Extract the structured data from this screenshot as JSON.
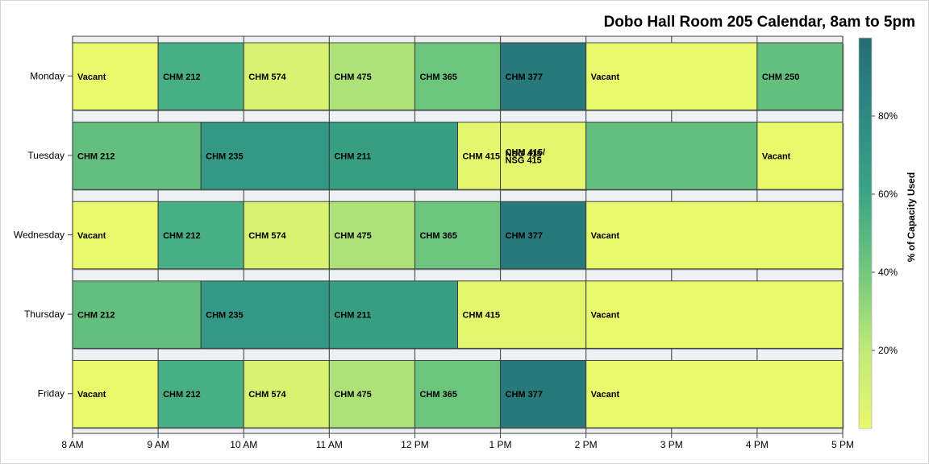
{
  "chart_data": {
    "type": "heatmap",
    "title": "Dobo Hall Room 205 Calendar, 8am to 5pm",
    "xlabel": "",
    "ylabel": "",
    "x_ticks": [
      "8 AM",
      "9 AM",
      "10 AM",
      "11 AM",
      "12 PM",
      "1 PM",
      "2 PM",
      "3 PM",
      "4 PM",
      "5 PM"
    ],
    "x_range": [
      8,
      17
    ],
    "days": [
      "Monday",
      "Tuesday",
      "Wednesday",
      "Thursday",
      "Friday"
    ],
    "colorbar": {
      "title": "% of Capacity Used",
      "ticks": [
        "20%",
        "40%",
        "60%",
        "80%"
      ],
      "tick_values": [
        20,
        40,
        60,
        80
      ],
      "range": [
        0,
        100
      ],
      "colors": [
        "#eaf86c",
        "#c0ea78",
        "#72c87c",
        "#3aa585",
        "#2d8a82",
        "#246d73"
      ]
    },
    "series": [
      {
        "day": "Monday",
        "blocks": [
          {
            "label": "Vacant",
            "start": 8,
            "end": 9,
            "pct": 0
          },
          {
            "label": "CHM 212",
            "start": 9,
            "end": 10,
            "pct": 55
          },
          {
            "label": "CHM 574",
            "start": 10,
            "end": 11,
            "pct": 8
          },
          {
            "label": "CHM 475",
            "start": 11,
            "end": 12,
            "pct": 25
          },
          {
            "label": "CHM 365",
            "start": 12,
            "end": 13,
            "pct": 42
          },
          {
            "label": "CHM 377",
            "start": 13,
            "end": 14,
            "pct": 92
          },
          {
            "label": "Vacant",
            "start": 14,
            "end": 16,
            "pct": 0
          },
          {
            "label": "CHM 250",
            "start": 16,
            "end": 17,
            "pct": 45
          }
        ]
      },
      {
        "day": "Tuesday",
        "blocks": [
          {
            "label": "CHM 212",
            "start": 8,
            "end": 9.5,
            "pct": 45
          },
          {
            "label": "CHM 235",
            "start": 9.5,
            "end": 11,
            "pct": 70
          },
          {
            "label": "CHM 211",
            "start": 11,
            "end": 12.5,
            "pct": 65
          },
          {
            "label": "CHM 415",
            "start": 12.5,
            "end": 14,
            "pct": 3
          },
          {
            "label": "CHM 415/\nNSG 415",
            "start": 13,
            "end": 14,
            "pct": 3
          },
          {
            "label": "",
            "start": 14,
            "end": 16,
            "pct": 45
          },
          {
            "label": "Vacant",
            "start": 16,
            "end": 17,
            "pct": 0
          }
        ],
        "overlay_labels": [
          "NSG 415"
        ]
      },
      {
        "day": "Wednesday",
        "blocks": [
          {
            "label": "Vacant",
            "start": 8,
            "end": 9,
            "pct": 0
          },
          {
            "label": "CHM 212",
            "start": 9,
            "end": 10,
            "pct": 55
          },
          {
            "label": "CHM 574",
            "start": 10,
            "end": 11,
            "pct": 8
          },
          {
            "label": "CHM 475",
            "start": 11,
            "end": 12,
            "pct": 25
          },
          {
            "label": "CHM 365",
            "start": 12,
            "end": 13,
            "pct": 42
          },
          {
            "label": "CHM 377",
            "start": 13,
            "end": 14,
            "pct": 92
          },
          {
            "label": "Vacant",
            "start": 14,
            "end": 17,
            "pct": 0
          }
        ]
      },
      {
        "day": "Thursday",
        "blocks": [
          {
            "label": "CHM 212",
            "start": 8,
            "end": 9.5,
            "pct": 45
          },
          {
            "label": "CHM 235",
            "start": 9.5,
            "end": 11,
            "pct": 70
          },
          {
            "label": "CHM 211",
            "start": 11,
            "end": 12.5,
            "pct": 65
          },
          {
            "label": "CHM 415",
            "start": 12.5,
            "end": 14,
            "pct": 3
          },
          {
            "label": "Vacant",
            "start": 14,
            "end": 17,
            "pct": 0
          }
        ]
      },
      {
        "day": "Friday",
        "blocks": [
          {
            "label": "Vacant",
            "start": 8,
            "end": 9,
            "pct": 0
          },
          {
            "label": "CHM 212",
            "start": 9,
            "end": 10,
            "pct": 55
          },
          {
            "label": "CHM 574",
            "start": 10,
            "end": 11,
            "pct": 8
          },
          {
            "label": "CHM 475",
            "start": 11,
            "end": 12,
            "pct": 25
          },
          {
            "label": "CHM 365",
            "start": 12,
            "end": 13,
            "pct": 42
          },
          {
            "label": "CHM 377",
            "start": 13,
            "end": 14,
            "pct": 92
          },
          {
            "label": "Vacant",
            "start": 14,
            "end": 17,
            "pct": 0
          }
        ]
      }
    ]
  }
}
